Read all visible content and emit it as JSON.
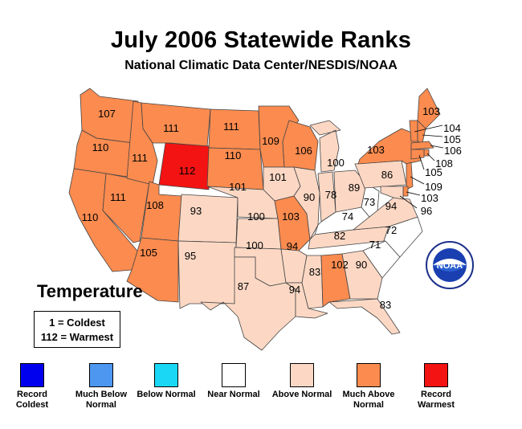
{
  "title": "July 2006 Statewide Ranks",
  "subtitle": "National Climatic Data Center/NESDIS/NOAA",
  "section_label": "Temperature",
  "key": {
    "line1": "1 = Coldest",
    "line2": "112 = Warmest"
  },
  "seal_text": "NOAA",
  "colors": {
    "record_coldest": "#0000ee",
    "much_below": "#4d97f0",
    "below": "#1ad8f5",
    "near": "#ffffff",
    "above": "#fcd8c4",
    "much_above": "#fb8b4f",
    "record_warmest": "#f31313",
    "border": "#444444"
  },
  "legend": [
    {
      "label": "Record Coldest",
      "class": "record_coldest"
    },
    {
      "label": "Much Below Normal",
      "class": "much_below"
    },
    {
      "label": "Below Normal",
      "class": "below"
    },
    {
      "label": "Near Normal",
      "class": "near"
    },
    {
      "label": "Above Normal",
      "class": "above"
    },
    {
      "label": "Much Above Normal",
      "class": "much_above"
    },
    {
      "label": "Record Warmest",
      "class": "record_warmest"
    }
  ],
  "states": [
    {
      "state": "WA",
      "rank": 107,
      "class": "much_above"
    },
    {
      "state": "OR",
      "rank": 110,
      "class": "much_above"
    },
    {
      "state": "CA",
      "rank": 110,
      "class": "much_above"
    },
    {
      "state": "NV",
      "rank": 111,
      "class": "much_above"
    },
    {
      "state": "ID",
      "rank": 111,
      "class": "much_above"
    },
    {
      "state": "MT",
      "rank": 111,
      "class": "much_above"
    },
    {
      "state": "WY",
      "rank": 112,
      "class": "record_warmest"
    },
    {
      "state": "UT",
      "rank": 108,
      "class": "much_above"
    },
    {
      "state": "AZ",
      "rank": 105,
      "class": "much_above"
    },
    {
      "state": "CO",
      "rank": 93,
      "class": "above"
    },
    {
      "state": "NM",
      "rank": 95,
      "class": "above"
    },
    {
      "state": "ND",
      "rank": 111,
      "class": "much_above"
    },
    {
      "state": "SD",
      "rank": 110,
      "class": "much_above"
    },
    {
      "state": "NE",
      "rank": 101,
      "class": "above"
    },
    {
      "state": "KS",
      "rank": 100,
      "class": "above"
    },
    {
      "state": "OK",
      "rank": 100,
      "class": "above"
    },
    {
      "state": "TX",
      "rank": 87,
      "class": "above"
    },
    {
      "state": "MN",
      "rank": 109,
      "class": "much_above"
    },
    {
      "state": "IA",
      "rank": 101,
      "class": "above"
    },
    {
      "state": "MO",
      "rank": 103,
      "class": "much_above"
    },
    {
      "state": "AR",
      "rank": 94,
      "class": "above"
    },
    {
      "state": "LA",
      "rank": 94,
      "class": "above"
    },
    {
      "state": "WI",
      "rank": 106,
      "class": "much_above"
    },
    {
      "state": "IL",
      "rank": 90,
      "class": "above"
    },
    {
      "state": "MI",
      "rank": 100,
      "class": "above"
    },
    {
      "state": "IN",
      "rank": 78,
      "class": "above"
    },
    {
      "state": "OH",
      "rank": 89,
      "class": "above"
    },
    {
      "state": "KY",
      "rank": 74,
      "class": "near"
    },
    {
      "state": "TN",
      "rank": 82,
      "class": "above"
    },
    {
      "state": "MS",
      "rank": 83,
      "class": "above"
    },
    {
      "state": "AL",
      "rank": 102,
      "class": "much_above"
    },
    {
      "state": "GA",
      "rank": 90,
      "class": "above"
    },
    {
      "state": "FL",
      "rank": 83,
      "class": "above"
    },
    {
      "state": "SC",
      "rank": 71,
      "class": "near"
    },
    {
      "state": "NC",
      "rank": 72,
      "class": "near"
    },
    {
      "state": "VA",
      "rank": 94,
      "class": "above"
    },
    {
      "state": "WV",
      "rank": 73,
      "class": "near"
    },
    {
      "state": "PA",
      "rank": 86,
      "class": "above"
    },
    {
      "state": "NY",
      "rank": 103,
      "class": "much_above"
    },
    {
      "state": "ME",
      "rank": 103,
      "class": "much_above"
    },
    {
      "state": "VT",
      "rank": 104,
      "class": "much_above"
    },
    {
      "state": "NH",
      "rank": 105,
      "class": "much_above"
    },
    {
      "state": "MA",
      "rank": 106,
      "class": "much_above"
    },
    {
      "state": "RI",
      "rank": 108,
      "class": "much_above"
    },
    {
      "state": "CT",
      "rank": 105,
      "class": "much_above"
    },
    {
      "state": "NJ",
      "rank": 109,
      "class": "much_above"
    },
    {
      "state": "DE",
      "rank": 103,
      "class": "much_above"
    },
    {
      "state": "MD",
      "rank": 96,
      "class": "above"
    }
  ]
}
